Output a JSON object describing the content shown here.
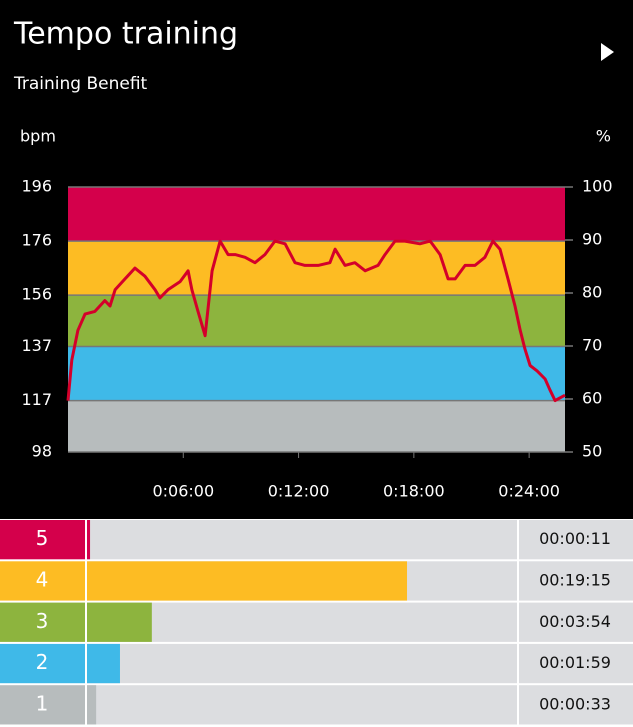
{
  "header": {
    "title": "Tempo training",
    "subtitle": "Training Benefit"
  },
  "chart_data": [
    {
      "type": "line",
      "y_label": "bpm",
      "y2_label": "%",
      "x": [
        0,
        12,
        31,
        53,
        84,
        115,
        131,
        147,
        178,
        209,
        240,
        272,
        287,
        312,
        350,
        375,
        387,
        406,
        428,
        450,
        475,
        500,
        522,
        553,
        584,
        615,
        646,
        678,
        709,
        740,
        781,
        818,
        834,
        865,
        896,
        928,
        968,
        990,
        1021,
        1052,
        1099,
        1131,
        1162,
        1187,
        1209,
        1240,
        1271,
        1302,
        1327,
        1349,
        1374,
        1396,
        1412,
        1427,
        1443,
        1465,
        1490,
        1505,
        1521,
        1536,
        1552
      ],
      "values": [
        117,
        132,
        143,
        149,
        150,
        154,
        152,
        158,
        162,
        166,
        163,
        158,
        155,
        158,
        161,
        165,
        158,
        150,
        141,
        165,
        176,
        171,
        171,
        170,
        168,
        171,
        176,
        175,
        168,
        167,
        167,
        168,
        173,
        167,
        168,
        165,
        167,
        171,
        176,
        176,
        175,
        176,
        171,
        162,
        162,
        167,
        167,
        170,
        176,
        173,
        162,
        152,
        143,
        136,
        130,
        128,
        125,
        121,
        117,
        118,
        119
      ],
      "color": "#d4002a",
      "xlim": [
        0,
        1552
      ],
      "xticks": [
        {
          "value": 360,
          "label": "0:06:00"
        },
        {
          "value": 720,
          "label": "0:12:00"
        },
        {
          "value": 1080,
          "label": "0:18:00"
        },
        {
          "value": 1440,
          "label": "0:24:00"
        }
      ],
      "ylim": [
        98,
        196
      ],
      "yticks": [
        98,
        117,
        137,
        156,
        176,
        196
      ],
      "y2lim": [
        50,
        100
      ],
      "y2ticks": [
        50,
        60,
        70,
        80,
        90,
        100
      ],
      "grid": true
    },
    {
      "type": "bar",
      "categories": [
        "5",
        "4",
        "3",
        "2",
        "1"
      ],
      "values": [
        11,
        1155,
        234,
        119,
        33
      ],
      "value_labels": [
        "00:00:11",
        "00:19:15",
        "00:03:54",
        "00:01:59",
        "00:00:33"
      ],
      "colors": [
        "#d4004b",
        "#fdbc23",
        "#8db43e",
        "#3fb9e8",
        "#b7bcbd"
      ]
    }
  ]
}
